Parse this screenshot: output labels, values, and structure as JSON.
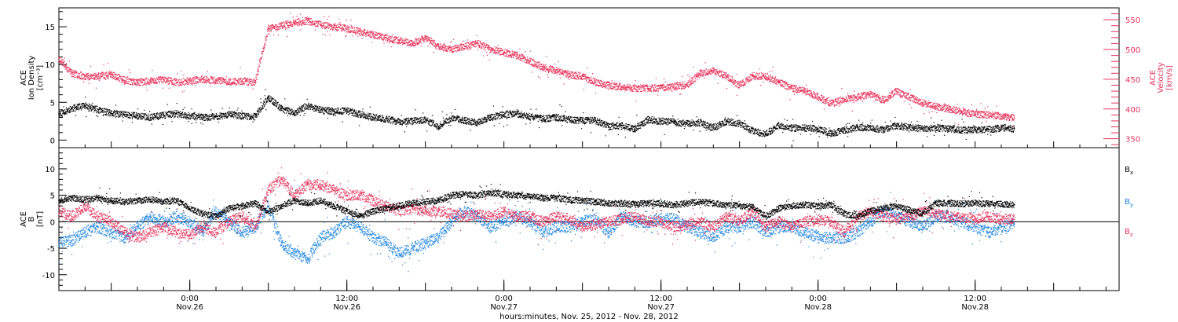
{
  "colors": {
    "axis": "#000000",
    "black": "#000000",
    "red": "#e8305a",
    "blue": "#1a82e0"
  },
  "chart_data": [
    {
      "type": "scatter",
      "panel": "top",
      "ylabel_left": [
        "ACE",
        "Ion Density",
        "[cm⁻³]"
      ],
      "ylabel_right": [
        "ACE",
        "Velocity",
        "[km/s]"
      ],
      "ylim_left": [
        -1,
        17.5
      ],
      "ylim_right": [
        335,
        570
      ],
      "yticks_left": [
        "0",
        "5",
        "10",
        "15"
      ],
      "yticks_right": [
        "350",
        "400",
        "450",
        "500",
        "550"
      ],
      "x_unit": "hours since Nov.25 00:00",
      "xlim": [
        14,
        95
      ],
      "series": [
        {
          "color": "black",
          "axis": "left",
          "x": [
            14,
            15,
            16,
            17,
            18,
            19,
            20,
            21,
            22,
            23,
            24,
            25,
            26,
            27,
            28,
            29,
            30,
            31,
            32,
            33,
            34,
            35,
            36,
            37,
            38,
            39,
            40,
            41,
            42,
            43,
            44,
            45,
            46,
            47,
            48,
            49,
            50,
            51,
            52,
            53,
            54,
            55,
            56,
            57,
            58,
            59,
            60,
            61,
            62,
            63,
            64,
            65,
            66,
            67,
            68,
            69,
            70,
            71,
            72,
            73,
            74,
            75,
            76,
            77,
            78,
            79,
            80,
            81,
            82,
            83,
            84,
            85,
            86,
            87
          ],
          "y": [
            3.5,
            4.2,
            4.5,
            4.0,
            3.5,
            3.4,
            3.2,
            3.0,
            3.3,
            3.5,
            3.2,
            3.0,
            3.1,
            3.4,
            3.2,
            3.1,
            5.6,
            4.2,
            3.6,
            4.5,
            4.0,
            3.8,
            3.9,
            3.4,
            3.0,
            2.8,
            2.4,
            2.5,
            2.7,
            1.8,
            2.9,
            2.6,
            2.3,
            3.0,
            3.4,
            3.5,
            3.1,
            2.8,
            3.0,
            2.7,
            2.6,
            2.6,
            1.8,
            1.9,
            1.5,
            2.7,
            2.5,
            2.4,
            2.2,
            2.3,
            1.6,
            2.5,
            2.2,
            1.2,
            0.8,
            1.9,
            1.6,
            1.6,
            1.5,
            0.9,
            1.3,
            1.7,
            1.6,
            1.4,
            1.9,
            1.7,
            1.5,
            1.6,
            1.5,
            1.3,
            1.4,
            1.4,
            1.6,
            1.5
          ]
        },
        {
          "color": "red",
          "axis": "right",
          "x": [
            14,
            15,
            16,
            17,
            18,
            19,
            20,
            21,
            22,
            23,
            24,
            25,
            26,
            27,
            28,
            29,
            30,
            31,
            32,
            33,
            34,
            35,
            36,
            37,
            38,
            39,
            40,
            41,
            42,
            43,
            44,
            45,
            46,
            47,
            48,
            49,
            50,
            51,
            52,
            53,
            54,
            55,
            56,
            57,
            58,
            59,
            60,
            61,
            62,
            63,
            64,
            65,
            66,
            67,
            68,
            69,
            70,
            71,
            72,
            73,
            74,
            75,
            76,
            77,
            78,
            79,
            80,
            81,
            82,
            83,
            84,
            85,
            86,
            87
          ],
          "y": [
            485,
            460,
            455,
            455,
            458,
            448,
            445,
            447,
            450,
            445,
            447,
            450,
            448,
            446,
            447,
            445,
            535,
            540,
            545,
            548,
            542,
            538,
            535,
            530,
            525,
            520,
            515,
            510,
            520,
            505,
            500,
            505,
            510,
            500,
            495,
            490,
            480,
            470,
            465,
            458,
            455,
            445,
            440,
            437,
            435,
            435,
            436,
            438,
            440,
            460,
            465,
            455,
            440,
            455,
            455,
            445,
            435,
            430,
            420,
            410,
            415,
            420,
            425,
            415,
            430,
            420,
            410,
            405,
            400,
            395,
            392,
            390,
            388,
            385
          ]
        }
      ]
    },
    {
      "type": "scatter",
      "panel": "bottom",
      "ylabel_left": [
        "ACE",
        "B",
        "[nT]"
      ],
      "ylim": [
        -13,
        14
      ],
      "yticks": [
        "-10",
        "-5",
        "0",
        "5",
        "10"
      ],
      "legend": [
        {
          "base": "B",
          "sub": "x",
          "color": "black"
        },
        {
          "base": "B",
          "sub": "y",
          "color": "blue"
        },
        {
          "base": "B",
          "sub": "z",
          "color": "red"
        }
      ],
      "legend_placement": "right",
      "x_unit": "hours since Nov.25 00:00",
      "xlim": [
        14,
        95
      ],
      "series": [
        {
          "color": "black",
          "x": [
            14,
            15,
            16,
            17,
            18,
            19,
            20,
            21,
            22,
            23,
            24,
            25,
            26,
            27,
            28,
            29,
            30,
            31,
            32,
            33,
            34,
            35,
            36,
            37,
            38,
            39,
            40,
            41,
            42,
            43,
            44,
            45,
            46,
            47,
            48,
            49,
            50,
            51,
            52,
            53,
            54,
            55,
            56,
            57,
            58,
            59,
            60,
            61,
            62,
            63,
            64,
            65,
            66,
            67,
            68,
            69,
            70,
            71,
            72,
            73,
            74,
            75,
            76,
            77,
            78,
            79,
            80,
            81,
            82,
            83,
            84,
            85,
            86,
            87
          ],
          "y": [
            4,
            4.5,
            4.2,
            4.5,
            4,
            3.8,
            4,
            4.2,
            3.8,
            4,
            2.5,
            1.5,
            1,
            2.5,
            3,
            3.5,
            2,
            3,
            4,
            3.5,
            4,
            3,
            2,
            1,
            2,
            2.5,
            3,
            3.5,
            3.8,
            4,
            5,
            5.2,
            5,
            5.5,
            5.2,
            5,
            4.8,
            4.5,
            4.5,
            4.2,
            4,
            3.8,
            3.5,
            3.5,
            3.3,
            3.5,
            3.4,
            3.2,
            3.5,
            3.8,
            3.5,
            3.2,
            3.0,
            2.8,
            1,
            2.5,
            3,
            3.2,
            3,
            3.2,
            1.5,
            1,
            2,
            2.5,
            3,
            2.2,
            1.5,
            3.5,
            3.5,
            3.4,
            3.5,
            3.4,
            3.3,
            3.2
          ]
        },
        {
          "color": "blue",
          "x": [
            14,
            15,
            16,
            17,
            18,
            19,
            20,
            21,
            22,
            23,
            24,
            25,
            26,
            27,
            28,
            29,
            30,
            31,
            32,
            33,
            34,
            35,
            36,
            37,
            38,
            39,
            40,
            41,
            42,
            43,
            44,
            45,
            46,
            47,
            48,
            49,
            50,
            51,
            52,
            53,
            54,
            55,
            56,
            57,
            58,
            59,
            60,
            61,
            62,
            63,
            64,
            65,
            66,
            67,
            68,
            69,
            70,
            71,
            72,
            73,
            74,
            75,
            76,
            77,
            78,
            79,
            80,
            81,
            82,
            83,
            84,
            85,
            86,
            87
          ],
          "y": [
            -4,
            -3.5,
            -2,
            -1,
            -2,
            -3,
            -1,
            1,
            0,
            1,
            0,
            -2,
            2,
            0,
            -2,
            -1,
            3,
            -4,
            -6,
            -7,
            -3,
            -2,
            0,
            -1,
            -3,
            -4,
            -6,
            -5,
            -4,
            -3,
            0,
            2,
            1,
            -1,
            0,
            1,
            0,
            -2,
            -1,
            -1,
            0,
            0.5,
            -2,
            1,
            0,
            0,
            0.5,
            0.5,
            -1,
            -2,
            -3,
            -1,
            -1,
            0,
            -2,
            -1,
            -1,
            -2,
            -3,
            -3,
            -3,
            -2,
            0,
            2,
            1,
            0,
            -1,
            1,
            1,
            0,
            -1,
            -2,
            -1,
            -0.5
          ]
        },
        {
          "color": "red",
          "x": [
            14,
            15,
            16,
            17,
            18,
            19,
            20,
            21,
            22,
            23,
            24,
            25,
            26,
            27,
            28,
            29,
            30,
            31,
            32,
            33,
            34,
            35,
            36,
            37,
            38,
            39,
            40,
            41,
            42,
            43,
            44,
            45,
            46,
            47,
            48,
            49,
            50,
            51,
            52,
            53,
            54,
            55,
            56,
            57,
            58,
            59,
            60,
            61,
            62,
            63,
            64,
            65,
            66,
            67,
            68,
            69,
            70,
            71,
            72,
            73,
            74,
            75,
            76,
            77,
            78,
            79,
            80,
            81,
            82,
            83,
            84,
            85,
            86,
            87
          ],
          "y": [
            2,
            1,
            3,
            1,
            0,
            -2,
            -3,
            -2,
            -1,
            -2,
            -2.5,
            -1,
            -2,
            0,
            1,
            -1,
            6,
            8,
            5,
            7,
            7,
            6,
            5,
            5,
            4,
            3,
            2,
            2.5,
            2,
            2,
            1.5,
            1,
            1.5,
            1,
            2,
            1,
            1,
            0,
            1,
            0.5,
            -1,
            -0.5,
            0,
            0.5,
            1,
            0,
            0,
            -1,
            -0.5,
            0,
            -1,
            1,
            0,
            2,
            -1,
            0,
            -1,
            0,
            0.5,
            0,
            -2,
            1,
            2,
            1,
            0.5,
            1,
            2,
            1.5,
            1,
            1,
            0.5,
            1,
            0.5,
            0.5
          ]
        }
      ]
    }
  ],
  "x_axis": {
    "ticks": [
      {
        "hour": 24,
        "time": "0:00",
        "date": "Nov.26"
      },
      {
        "hour": 36,
        "time": "12:00",
        "date": "Nov.26"
      },
      {
        "hour": 48,
        "time": "0:00",
        "date": "Nov.27"
      },
      {
        "hour": 60,
        "time": "12:00",
        "date": "Nov.27"
      },
      {
        "hour": 72,
        "time": "0:00",
        "date": "Nov.28"
      },
      {
        "hour": 84,
        "time": "12:00",
        "date": "Nov.28"
      }
    ],
    "label": "hours:minutes, Nov. 25, 2012 - Nov. 28, 2012"
  }
}
